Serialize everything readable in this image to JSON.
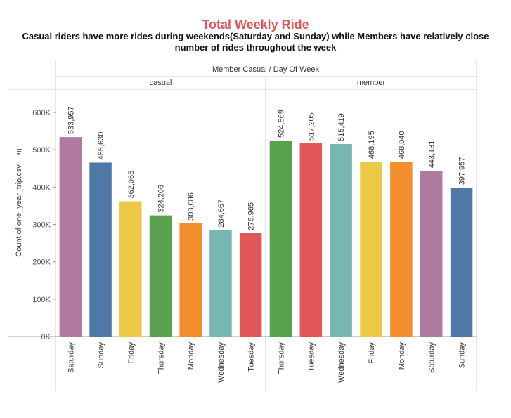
{
  "chart_data": {
    "type": "bar",
    "title": "Total Weekly Ride",
    "subtitle": "Casual riders have more rides during weekends(Saturday and Sunday) while Members have relatively close number of rides throughout the week",
    "column_header": "Member Casual / Day Of Week",
    "ylabel": "Count of one_year_trip.csv",
    "ylim": [
      0,
      680000
    ],
    "yticks": [
      0,
      100000,
      200000,
      300000,
      400000,
      500000,
      600000
    ],
    "ytick_labels": [
      "0K",
      "100K",
      "200K",
      "300K",
      "400K",
      "500K",
      "600K"
    ],
    "grid": false,
    "groups": [
      {
        "name": "casual",
        "bars": [
          {
            "day": "Saturday",
            "value": 533957,
            "label": "533,957",
            "color": "#b07aa1"
          },
          {
            "day": "Sunday",
            "value": 465630,
            "label": "465,630",
            "color": "#4e79a7"
          },
          {
            "day": "Friday",
            "value": 362065,
            "label": "362,065",
            "color": "#edc948"
          },
          {
            "day": "Thursday",
            "value": 324206,
            "label": "324,206",
            "color": "#59a14f"
          },
          {
            "day": "Monday",
            "value": 303086,
            "label": "303,086",
            "color": "#f28e2b"
          },
          {
            "day": "Wednesday",
            "value": 284667,
            "label": "284,667",
            "color": "#76b7b2"
          },
          {
            "day": "Tuesday",
            "value": 276965,
            "label": "276,965",
            "color": "#e15759"
          }
        ]
      },
      {
        "name": "member",
        "bars": [
          {
            "day": "Thursday",
            "value": 524869,
            "label": "524,869",
            "color": "#59a14f"
          },
          {
            "day": "Tuesday",
            "value": 517205,
            "label": "517,205",
            "color": "#e15759"
          },
          {
            "day": "Wednesday",
            "value": 515419,
            "label": "515,419",
            "color": "#76b7b2"
          },
          {
            "day": "Friday",
            "value": 468195,
            "label": "468,195",
            "color": "#edc948"
          },
          {
            "day": "Monday",
            "value": 468040,
            "label": "468,040",
            "color": "#f28e2b"
          },
          {
            "day": "Saturday",
            "value": 443131,
            "label": "443,131",
            "color": "#b07aa1"
          },
          {
            "day": "Sunday",
            "value": 397957,
            "label": "397,957",
            "color": "#4e79a7"
          }
        ]
      }
    ]
  }
}
